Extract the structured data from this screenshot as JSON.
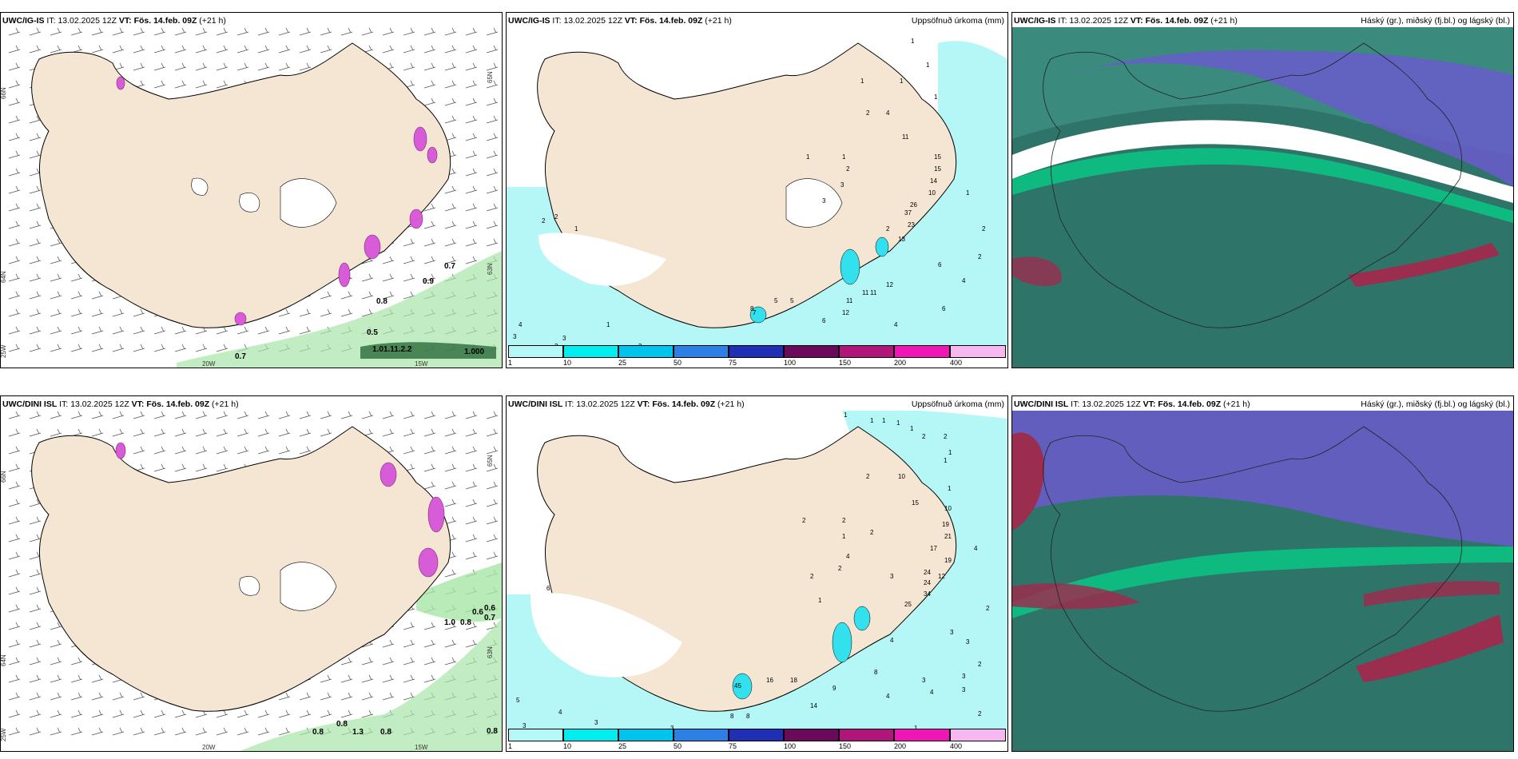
{
  "colors": {
    "land": "#f5e6d3",
    "glacier": "#ffffff",
    "precip_light": "#b5f6f6",
    "precip_mid": "#33e0ee",
    "dark_cloud": "#2f7468",
    "teal_cloud": "#3a8a7e",
    "purple_cloud": "#6a5acd",
    "red_cloud": "#9b2d4f",
    "green_edge": "#00d98a",
    "magenta": "#d85bd8",
    "green_precip": "#8fdc9a"
  },
  "panels": [
    {
      "id": "ig-left",
      "model": "UWC/IG-IS",
      "it_label": "IT:",
      "it_value": "13.02.2025 12Z",
      "vt_label": "VT:",
      "vt_value": "Fös. 14.feb. 09Z",
      "lead": "(+21 h)",
      "right_title": "",
      "labels": [
        "0.7",
        "0.9",
        "0.8",
        "0.5",
        "0.7",
        "1.01.11.2.2",
        "1.000"
      ],
      "grid_labels": [
        "66N",
        "64N",
        "65N",
        "63N",
        "25W",
        "20W",
        "15W"
      ]
    },
    {
      "id": "ig-mid",
      "model": "UWC/IG-IS",
      "it_label": "IT:",
      "it_value": "13.02.2025 12Z",
      "vt_label": "VT:",
      "vt_value": "Fös. 14.feb. 09Z",
      "lead": "(+21 h)",
      "right_title": "Uppsöfnuð úrkoma (mm)",
      "labels": [
        "1",
        "1",
        "1",
        "1",
        "1",
        "2",
        "4",
        "11",
        "15",
        "15",
        "14",
        "10",
        "1",
        "1",
        "1",
        "2",
        "3",
        "3",
        "26",
        "37",
        "23",
        "13",
        "2",
        "2",
        "1",
        "2",
        "2",
        "6",
        "4",
        "2",
        "6",
        "12",
        "11",
        "11",
        "12",
        "11",
        "5",
        "8",
        "4",
        "6",
        "4",
        "3",
        "3",
        "1",
        "3",
        "2",
        "4",
        "4",
        "8",
        "7",
        "5"
      ],
      "colorbar": [
        "1",
        "10",
        "25",
        "50",
        "75",
        "100",
        "150",
        "200",
        "400"
      ]
    },
    {
      "id": "ig-right",
      "model": "UWC/IG-IS",
      "it_label": "IT:",
      "it_value": "13.02.2025 12Z",
      "vt_label": "VT:",
      "vt_value": "Fös. 14.feb. 09Z",
      "lead": "(+21 h)",
      "right_title": "Háský (gr.), miðský (fj.bl.) og lágský (bl.)"
    },
    {
      "id": "dini-left",
      "model": "UWC/DINI ISL",
      "it_label": "IT:",
      "it_value": "13.02.2025 12Z",
      "vt_label": "VT:",
      "vt_value": "Fös. 14.feb. 09Z",
      "lead": "(+21 h)",
      "right_title": "",
      "labels": [
        "0.6",
        "0.6",
        "0.7",
        "1.0",
        "0.8",
        "0.8",
        "0.8",
        "1.3",
        "0.8",
        "0.8"
      ],
      "grid_labels": [
        "66N",
        "64N",
        "65N",
        "63N",
        "25W",
        "20W",
        "15W"
      ]
    },
    {
      "id": "dini-mid",
      "model": "UWC/DINI ISL",
      "it_label": "IT:",
      "it_value": "13.02.2025 12Z",
      "vt_label": "VT:",
      "vt_value": "Fös. 14.feb. 09Z",
      "lead": "(+21 h)",
      "right_title": "Uppsöfnuð úrkoma (mm)",
      "labels": [
        "1",
        "1",
        "1",
        "1",
        "1",
        "2",
        "2",
        "1",
        "1",
        "10",
        "2",
        "1",
        "15",
        "10",
        "19",
        "21",
        "19",
        "17",
        "12",
        "24",
        "24",
        "34",
        "25",
        "3",
        "2",
        "2",
        "1",
        "2",
        "4",
        "2",
        "2",
        "4",
        "2",
        "3",
        "3",
        "2",
        "6",
        "1",
        "9",
        "18",
        "8",
        "4",
        "3",
        "8",
        "4",
        "4",
        "3",
        "3",
        "16",
        "14",
        "45",
        "8",
        "5",
        "4",
        "3",
        "3",
        "5",
        "3",
        "1",
        "2"
      ],
      "colorbar": [
        "1",
        "10",
        "25",
        "50",
        "75",
        "100",
        "150",
        "200",
        "400"
      ]
    },
    {
      "id": "dini-right",
      "model": "UWC/DINI ISL",
      "it_label": "IT:",
      "it_value": "13.02.2025 12Z",
      "vt_label": "VT:",
      "vt_value": "Fös. 14.feb. 09Z",
      "lead": "(+21 h)",
      "right_title": "Háský (gr.), miðský (fj.bl.) og lágský (bl.)"
    }
  ]
}
